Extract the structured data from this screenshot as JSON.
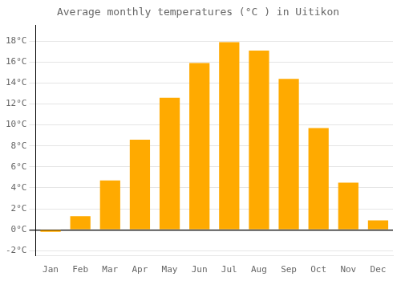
{
  "chart_data": {
    "type": "bar",
    "title": "Average monthly temperatures (°C ) in Uitikon",
    "categories": [
      "Jan",
      "Feb",
      "Mar",
      "Apr",
      "May",
      "Jun",
      "Jul",
      "Aug",
      "Sep",
      "Oct",
      "Nov",
      "Dec"
    ],
    "values": [
      -0.2,
      1.3,
      4.7,
      8.6,
      12.6,
      15.9,
      17.9,
      17.1,
      14.4,
      9.7,
      4.5,
      0.9
    ],
    "color": "#FFAA00",
    "ylim": [
      -2.5,
      19.5
    ],
    "yticks": [
      {
        "value": -2,
        "label": "-2°C"
      },
      {
        "value": 0,
        "label": "0°C"
      },
      {
        "value": 2,
        "label": "2°C"
      },
      {
        "value": 4,
        "label": "4°C"
      },
      {
        "value": 6,
        "label": "6°C"
      },
      {
        "value": 8,
        "label": "8°C"
      },
      {
        "value": 10,
        "label": "10°C"
      },
      {
        "value": 12,
        "label": "12°C"
      },
      {
        "value": 14,
        "label": "14°C"
      },
      {
        "value": 16,
        "label": "16°C"
      },
      {
        "value": 18,
        "label": "18°C"
      }
    ],
    "grid": true
  }
}
